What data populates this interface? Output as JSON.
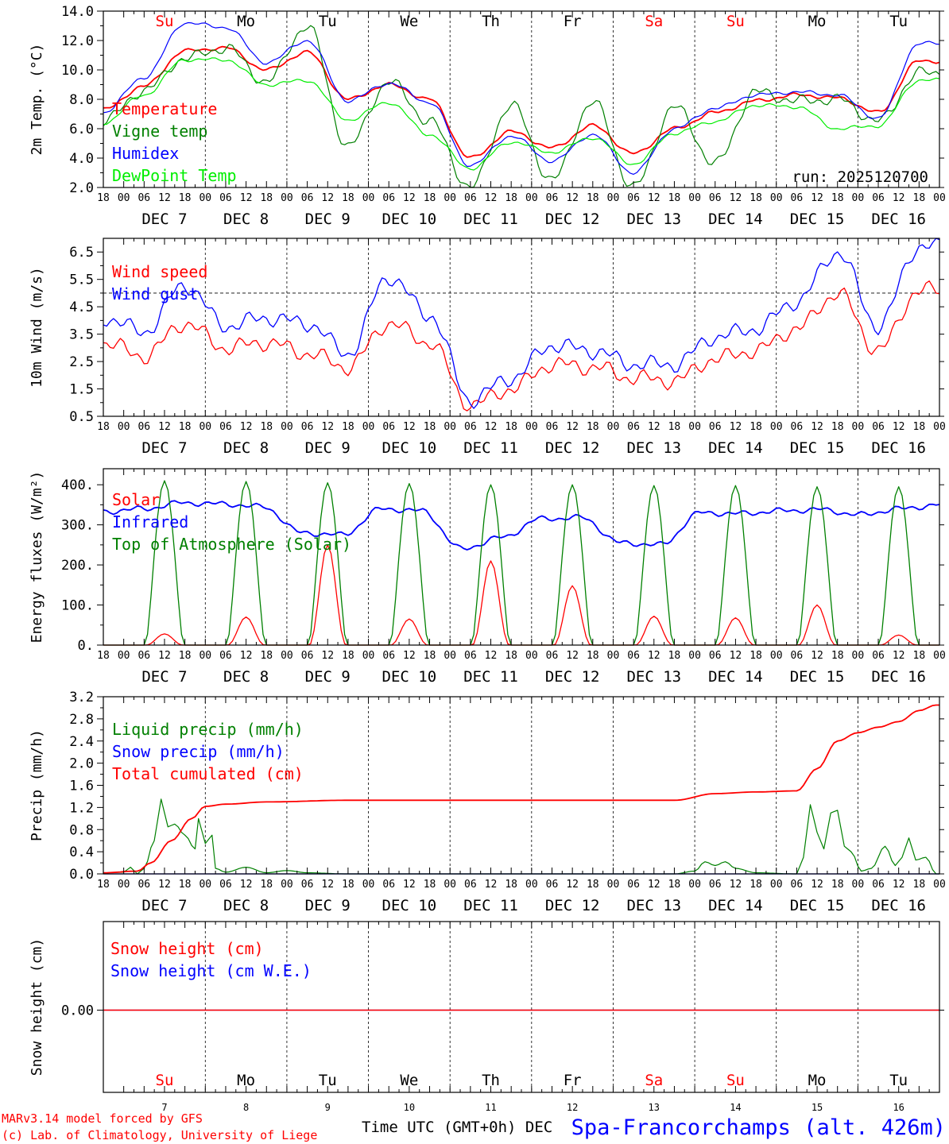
{
  "meta": {
    "run_label": "run: 2025120700",
    "footer_model": "MARv3.14 model forced by GFS",
    "footer_lab": "(c) Lab. of Climatology, University of Liege",
    "footer_axis": "Time UTC (GMT+0h) DEC",
    "station": "Spa-Francorchamps (alt. 426m)"
  },
  "days": [
    {
      "wd": "Su",
      "dec": "DEC  7",
      "num": "7",
      "weekend": true
    },
    {
      "wd": "Mo",
      "dec": "DEC  8",
      "num": "8",
      "weekend": false
    },
    {
      "wd": "Tu",
      "dec": "DEC  9",
      "num": "9",
      "weekend": false
    },
    {
      "wd": "We",
      "dec": "DEC 10",
      "num": "10",
      "weekend": false
    },
    {
      "wd": "Th",
      "dec": "DEC 11",
      "num": "11",
      "weekend": false
    },
    {
      "wd": "Fr",
      "dec": "DEC 12",
      "num": "12",
      "weekend": false
    },
    {
      "wd": "Sa",
      "dec": "DEC 13",
      "num": "13",
      "weekend": true
    },
    {
      "wd": "Su",
      "dec": "DEC 14",
      "num": "14",
      "weekend": true
    },
    {
      "wd": "Mo",
      "dec": "DEC 15",
      "num": "15",
      "weekend": false
    },
    {
      "wd": "Tu",
      "dec": "DEC 16",
      "num": "16",
      "weekend": false
    }
  ],
  "hour_ticks": [
    "00",
    "06",
    "12",
    "18"
  ],
  "colors": {
    "red": "#ff0000",
    "green": "#008000",
    "blue": "#0000ff",
    "light_green": "#00ee00",
    "axis": "#000000",
    "weekend": "#ff0000"
  },
  "chart_data": [
    {
      "type": "line",
      "ylabel": "2m Temp. (°C)",
      "ylim": [
        2.0,
        14.0
      ],
      "yticks": [
        "2.0",
        "4.0",
        "6.0",
        "8.0",
        "10.0",
        "12.0",
        "14.0"
      ],
      "x_hours": [
        0,
        12,
        24,
        36,
        48,
        60,
        72,
        84,
        96,
        108,
        120,
        132,
        144,
        156,
        168,
        180,
        192,
        204,
        216,
        228,
        240
      ],
      "series": [
        {
          "name": "Temperature",
          "color": "red",
          "values": [
            7.3,
            8.9,
            11.3,
            11.5,
            10.0,
            11.2,
            8.0,
            9.0,
            8.0,
            4.0,
            5.8,
            4.7,
            6.2,
            4.3,
            6.0,
            7.1,
            7.9,
            8.3,
            8.1,
            7.1,
            10.6
          ]
        },
        {
          "name": "Vigne temp",
          "color": "green",
          "values": [
            6.5,
            8.6,
            10.8,
            11.5,
            9.2,
            13.0,
            4.8,
            9.2,
            6.5,
            2.0,
            7.6,
            2.5,
            7.8,
            2.0,
            7.5,
            3.6,
            8.5,
            7.9,
            8.0,
            6.5,
            9.8
          ]
        },
        {
          "name": "Humidex",
          "color": "blue",
          "values": [
            7.1,
            9.5,
            13.2,
            12.9,
            10.5,
            12.0,
            7.9,
            9.1,
            7.8,
            3.5,
            5.5,
            3.8,
            5.6,
            3.0,
            6.0,
            7.4,
            8.3,
            8.5,
            8.3,
            6.7,
            11.8
          ]
        },
        {
          "name": "DewPoint Temp",
          "color": "light_green",
          "values": [
            6.4,
            8.3,
            10.7,
            10.7,
            9.0,
            9.3,
            6.6,
            7.8,
            5.6,
            3.3,
            5.1,
            4.4,
            5.4,
            3.6,
            5.7,
            6.5,
            7.6,
            7.5,
            6.0,
            6.2,
            9.3
          ]
        }
      ]
    },
    {
      "type": "line",
      "ylabel": "10m Wind (m/s)",
      "ylim": [
        0.5,
        7.0
      ],
      "yticks": [
        "0.5",
        "1.5",
        "2.5",
        "3.5",
        "4.5",
        "5.5",
        "6.5"
      ],
      "reference_line": 5.0,
      "x_hours": [
        0,
        12,
        24,
        36,
        48,
        60,
        72,
        84,
        96,
        108,
        120,
        132,
        144,
        156,
        168,
        180,
        192,
        204,
        216,
        228,
        240
      ],
      "series": [
        {
          "name": "Wind speed",
          "color": "red",
          "values": [
            3.2,
            2.7,
            3.9,
            3.0,
            3.2,
            2.8,
            2.3,
            3.9,
            3.2,
            0.9,
            1.5,
            2.4,
            2.3,
            1.9,
            1.8,
            2.6,
            2.9,
            3.7,
            5.0,
            2.9,
            5.1
          ]
        },
        {
          "name": "Wind gust",
          "color": "blue",
          "values": [
            4.1,
            3.6,
            5.3,
            3.8,
            4.1,
            3.9,
            2.8,
            5.6,
            4.2,
            1.1,
            1.9,
            3.1,
            2.9,
            2.4,
            2.4,
            3.4,
            3.7,
            4.7,
            6.5,
            3.8,
            6.7
          ]
        }
      ]
    },
    {
      "type": "line",
      "ylabel": "Energy fluxes (W/m²)",
      "ylim": [
        0,
        440
      ],
      "yticks": [
        "0.",
        "100.",
        "200.",
        "300.",
        "400."
      ],
      "series": [
        {
          "name": "Solar",
          "color": "red",
          "daily_peak": [
            28,
            70,
            250,
            65,
            210,
            148,
            72,
            68,
            100,
            25
          ]
        },
        {
          "name": "Infrared",
          "color": "blue",
          "values": [
            333,
            340,
            355,
            352,
            345,
            280,
            275,
            340,
            335,
            240,
            268,
            315,
            318,
            255,
            250,
            330,
            328,
            335,
            338,
            325,
            340,
            350
          ]
        },
        {
          "name": "Top of Atmosphere (Solar)",
          "color": "green",
          "daily_peak": [
            410,
            408,
            405,
            403,
            400,
            400,
            398,
            398,
            395,
            395
          ]
        }
      ]
    },
    {
      "type": "line",
      "ylabel": "Precip (mm/h)",
      "ylim": [
        0.0,
        3.2
      ],
      "yticks": [
        "0.0",
        "0.4",
        "0.8",
        "1.2",
        "1.6",
        "2.0",
        "2.4",
        "2.8",
        "3.2"
      ],
      "series": [
        {
          "name": "Liquid precip (mm/h)",
          "color": "green",
          "points": [
            [
              0,
              0.02
            ],
            [
              6,
              0.03
            ],
            [
              8,
              0.12
            ],
            [
              10,
              0.0
            ],
            [
              12,
              0.1
            ],
            [
              15,
              0.6
            ],
            [
              17,
              1.35
            ],
            [
              19,
              0.85
            ],
            [
              21,
              0.9
            ],
            [
              24,
              0.7
            ],
            [
              27,
              0.45
            ],
            [
              28,
              1.0
            ],
            [
              30,
              0.55
            ],
            [
              32,
              0.7
            ],
            [
              33,
              0.1
            ],
            [
              36,
              0.03
            ],
            [
              42,
              0.12
            ],
            [
              48,
              0.02
            ],
            [
              54,
              0.06
            ],
            [
              60,
              0.02
            ],
            [
              72,
              0.0
            ],
            [
              168,
              0.0
            ],
            [
              174,
              0.05
            ],
            [
              177,
              0.22
            ],
            [
              180,
              0.15
            ],
            [
              183,
              0.22
            ],
            [
              186,
              0.1
            ],
            [
              192,
              0.02
            ],
            [
              204,
              0.0
            ],
            [
              206,
              0.3
            ],
            [
              208,
              1.25
            ],
            [
              210,
              0.75
            ],
            [
              212,
              0.45
            ],
            [
              214,
              1.1
            ],
            [
              216,
              1.15
            ],
            [
              218,
              0.5
            ],
            [
              220,
              0.4
            ],
            [
              223,
              0.05
            ],
            [
              226,
              0.1
            ],
            [
              230,
              0.5
            ],
            [
              233,
              0.15
            ],
            [
              235,
              0.3
            ],
            [
              237,
              0.65
            ],
            [
              239,
              0.25
            ],
            [
              242,
              0.3
            ],
            [
              245,
              0.0
            ]
          ]
        },
        {
          "name": "Snow precip (mm/h)",
          "color": "blue",
          "points": [
            [
              0,
              0.0
            ],
            [
              245,
              0.0
            ]
          ]
        },
        {
          "name": "Total cumulated (cm)",
          "color": "red",
          "points": [
            [
              0,
              0.02
            ],
            [
              10,
              0.05
            ],
            [
              14,
              0.2
            ],
            [
              20,
              0.6
            ],
            [
              26,
              1.0
            ],
            [
              30,
              1.22
            ],
            [
              36,
              1.26
            ],
            [
              48,
              1.3
            ],
            [
              72,
              1.33
            ],
            [
              120,
              1.33
            ],
            [
              168,
              1.33
            ],
            [
              180,
              1.45
            ],
            [
              192,
              1.48
            ],
            [
              204,
              1.5
            ],
            [
              210,
              1.9
            ],
            [
              216,
              2.4
            ],
            [
              222,
              2.55
            ],
            [
              228,
              2.65
            ],
            [
              234,
              2.75
            ],
            [
              240,
              2.95
            ],
            [
              245,
              3.05
            ]
          ]
        }
      ]
    },
    {
      "type": "line",
      "ylabel": "Snow height (cm)",
      "yticks": [
        "0.00"
      ],
      "series": [
        {
          "name": "Snow height (cm)",
          "color": "red",
          "values": [
            0.0,
            0.0
          ]
        },
        {
          "name": "Snow height (cm W.E.)",
          "color": "blue",
          "values": [
            0.0,
            0.0
          ]
        }
      ]
    }
  ]
}
